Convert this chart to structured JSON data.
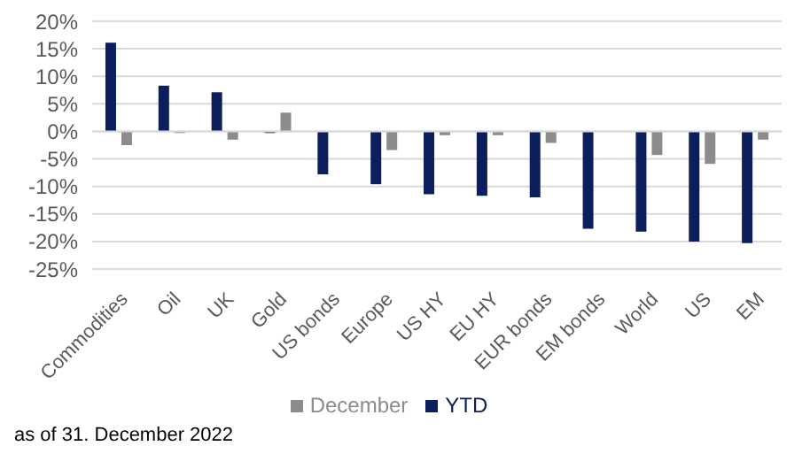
{
  "chart_data": {
    "type": "bar",
    "categories": [
      "Commodities",
      "Oil",
      "UK",
      "Gold",
      "US bonds",
      "Europe",
      "US HY",
      "EU HY",
      "EUR bonds",
      "EM bonds",
      "World",
      "US",
      "EM"
    ],
    "series": [
      {
        "name": "YTD",
        "color": "#0c1f5c",
        "values": [
          16.1,
          8.3,
          7.1,
          -0.3,
          -7.8,
          -9.6,
          -11.4,
          -11.7,
          -12.0,
          -17.7,
          -18.2,
          -20.0,
          -20.3
        ]
      },
      {
        "name": "December",
        "color": "#8c8c8c",
        "values": [
          -2.5,
          -0.3,
          -1.5,
          3.4,
          0,
          -3.4,
          -0.7,
          -0.7,
          -2.1,
          0,
          -4.3,
          -5.9,
          -1.5
        ]
      }
    ],
    "ylim": [
      -25,
      20
    ],
    "yticks": [
      {
        "value": -25,
        "label": "-25%"
      },
      {
        "value": -20,
        "label": "-20%"
      },
      {
        "value": -15,
        "label": "-15%"
      },
      {
        "value": -10,
        "label": "-10%"
      },
      {
        "value": -5,
        "label": "-5%"
      },
      {
        "value": 0,
        "label": "0%"
      },
      {
        "value": 5,
        "label": "5%"
      },
      {
        "value": 10,
        "label": "10%"
      },
      {
        "value": 15,
        "label": "15%"
      },
      {
        "value": 20,
        "label": "20%"
      }
    ],
    "grid": "y",
    "legend": "bottom",
    "annotations": [
      "as of 31. December 2022"
    ]
  }
}
